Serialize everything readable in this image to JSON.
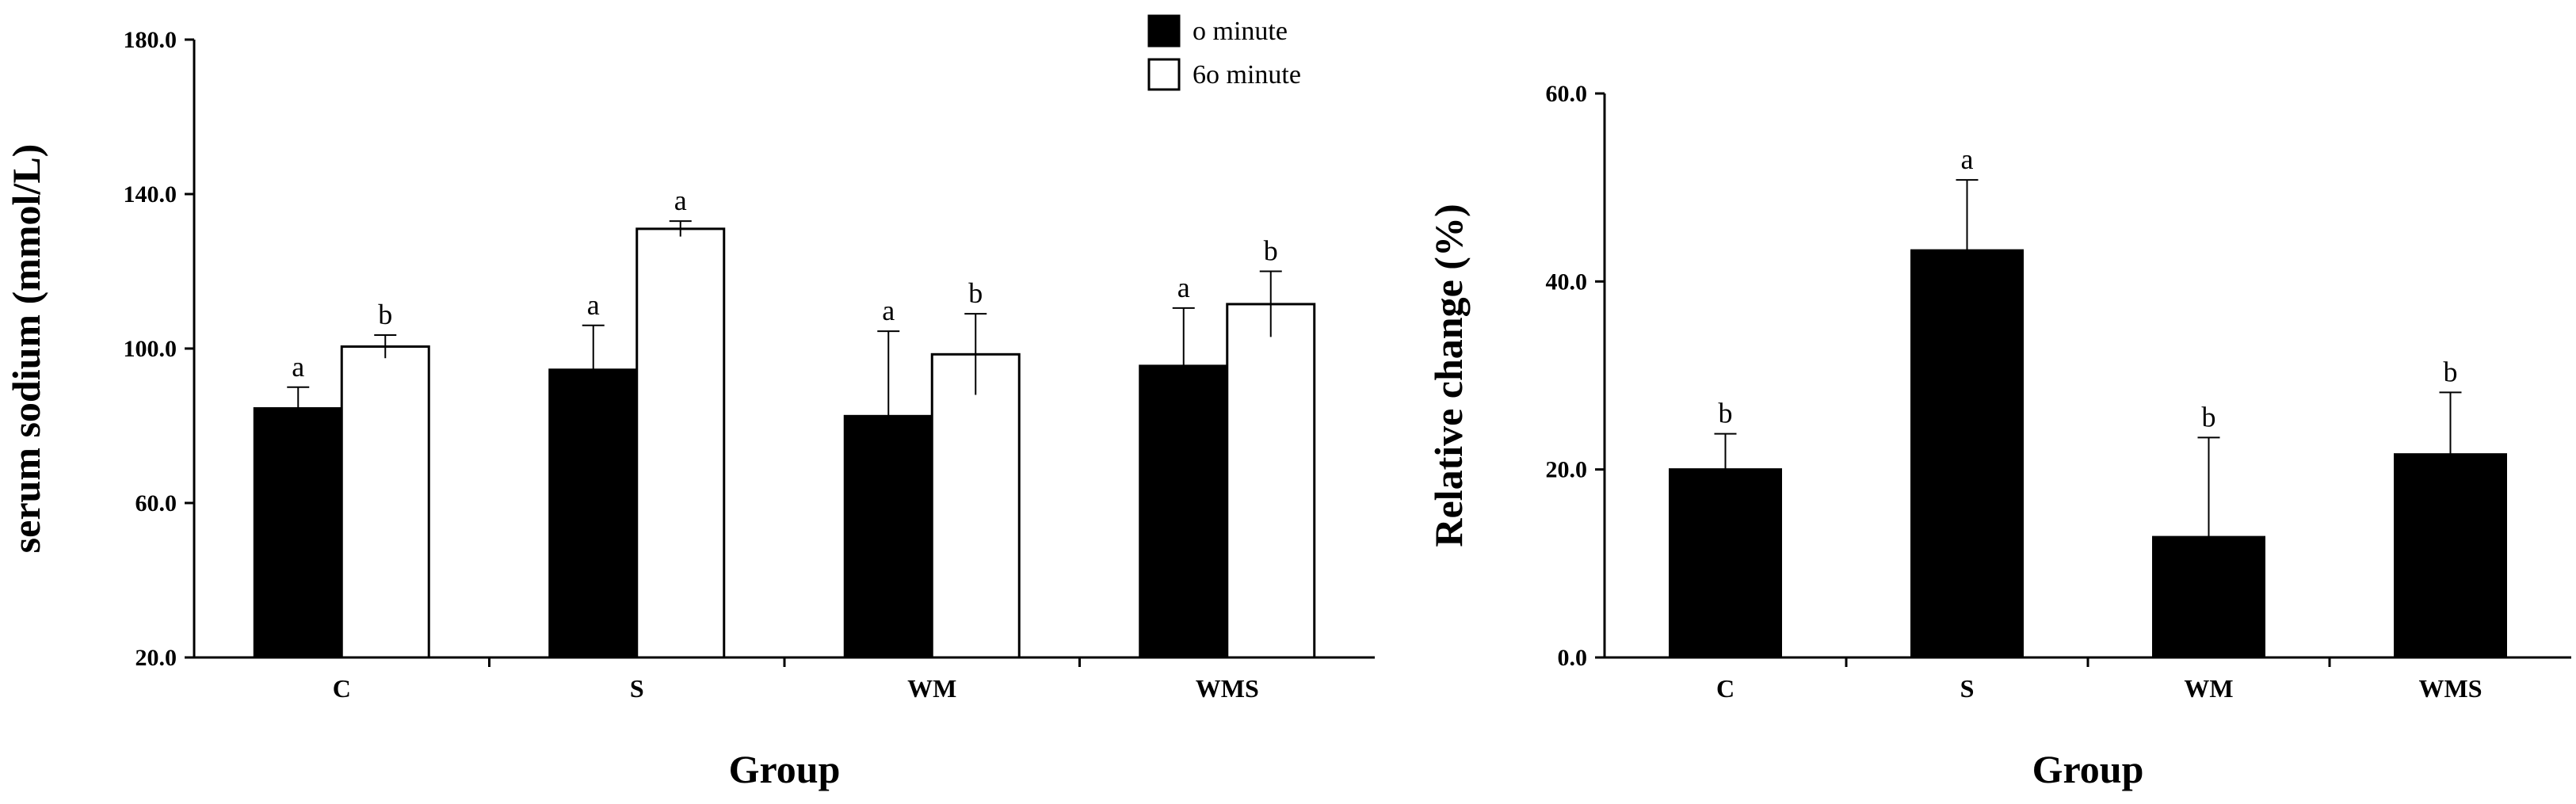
{
  "chart_data": [
    {
      "type": "bar",
      "title": "",
      "xlabel": "Group",
      "ylabel": "serum sodium (mmol/L)",
      "ylim": [
        20,
        180
      ],
      "yticks": [
        "20.0",
        "60.0",
        "100.0",
        "140.0",
        "180.0"
      ],
      "categories": [
        "C",
        "S",
        "WM",
        "WMS"
      ],
      "legend": {
        "placement": "top-center"
      },
      "series": [
        {
          "name": "o minute",
          "color": "#000000",
          "values": [
            84.5,
            94.5,
            82.5,
            95.5
          ],
          "errors": [
            5.5,
            11.5,
            22.0,
            15.0
          ],
          "sig": [
            "a",
            "a",
            "a",
            "a"
          ]
        },
        {
          "name": "6o minute",
          "color": "#ffffff",
          "values": [
            100.5,
            131.0,
            98.5,
            111.5
          ],
          "errors": [
            3.0,
            2.0,
            10.5,
            8.5
          ],
          "sig": [
            "b",
            "a",
            "b",
            "b"
          ]
        }
      ],
      "grid": false
    },
    {
      "type": "bar",
      "title": "",
      "xlabel": "Group",
      "ylabel": "Relative change (%)",
      "ylim": [
        0,
        60
      ],
      "yticks": [
        "0.0",
        "20.0",
        "40.0",
        "60.0"
      ],
      "categories": [
        "C",
        "S",
        "WM",
        "WMS"
      ],
      "series": [
        {
          "color": "#000000",
          "values": [
            20.0,
            43.3,
            12.8,
            21.6
          ],
          "errors": [
            3.8,
            7.5,
            10.6,
            6.6
          ],
          "sig": [
            "b",
            "a",
            "b",
            "b"
          ]
        }
      ],
      "grid": false
    }
  ]
}
